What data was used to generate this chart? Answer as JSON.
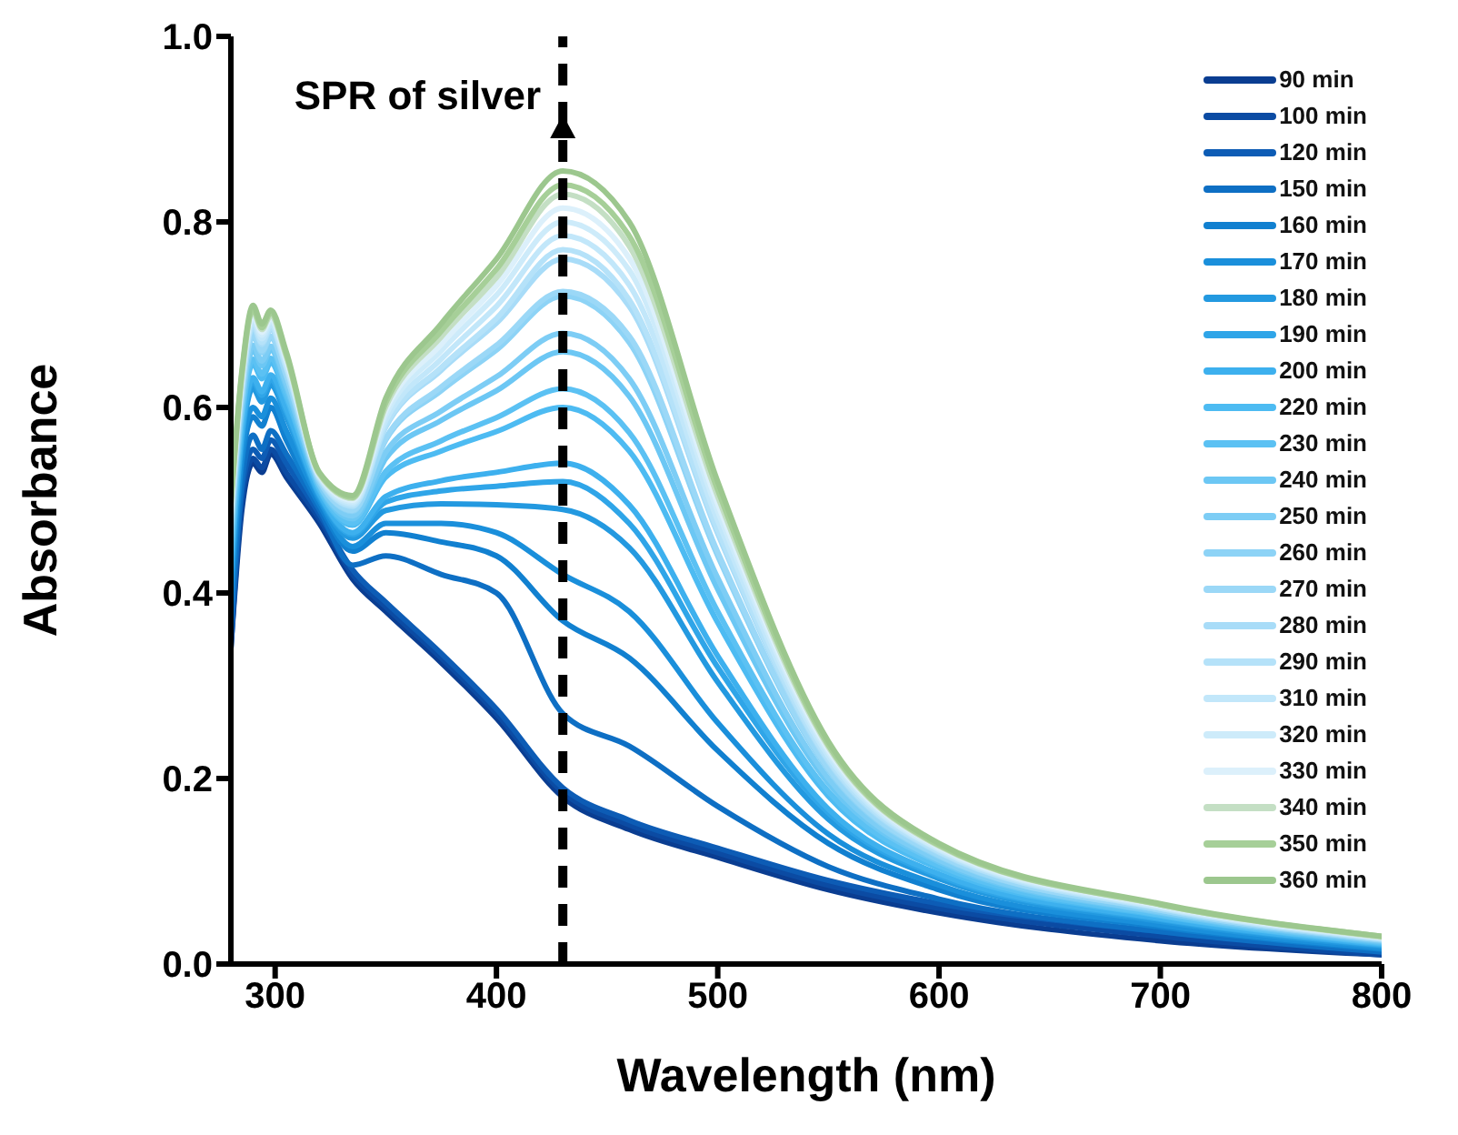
{
  "chart_data": {
    "type": "line",
    "xlabel": "Wavelength (nm)",
    "ylabel": "Absorbance",
    "x": [
      280,
      285,
      290,
      294,
      298,
      305,
      320,
      335,
      350,
      375,
      400,
      430,
      460,
      500,
      550,
      600,
      700,
      800
    ],
    "xlim": [
      280,
      800
    ],
    "xticks": [
      300,
      400,
      500,
      600,
      700,
      800
    ],
    "ylim": [
      0,
      1
    ],
    "yticks": [
      {
        "value": 0,
        "label": "0.0"
      },
      {
        "value": 0.2,
        "label": "0.2"
      },
      {
        "value": 0.4,
        "label": "0.4"
      },
      {
        "value": 0.6,
        "label": "0.6"
      },
      {
        "value": 0.8,
        "label": "0.8"
      },
      {
        "value": 1,
        "label": "1.0"
      }
    ],
    "grid": false,
    "legend": "top right",
    "marker": "none",
    "line_style": "solid",
    "ref_lines": [
      {
        "axis": "x",
        "value": 430,
        "label": "SPR of silver",
        "color": "#000000",
        "line_style": "dashed"
      }
    ],
    "series": [
      {
        "name": "90 min",
        "color": "#0a3d91",
        "values": [
          0.34,
          0.49,
          0.54,
          0.53,
          0.55,
          0.525,
          0.475,
          0.415,
          0.38,
          0.325,
          0.265,
          0.18,
          0.145,
          0.115,
          0.08,
          0.055,
          0.025,
          0.01
        ]
      },
      {
        "name": "100 min",
        "color": "#0b4ba3",
        "values": [
          0.34,
          0.5,
          0.545,
          0.535,
          0.555,
          0.53,
          0.48,
          0.42,
          0.385,
          0.33,
          0.27,
          0.185,
          0.15,
          0.12,
          0.085,
          0.06,
          0.03,
          0.01
        ]
      },
      {
        "name": "120 min",
        "color": "#0d5cb5",
        "values": [
          0.35,
          0.51,
          0.555,
          0.545,
          0.565,
          0.54,
          0.485,
          0.425,
          0.39,
          0.335,
          0.275,
          0.19,
          0.155,
          0.125,
          0.09,
          0.065,
          0.035,
          0.015
        ]
      },
      {
        "name": "150 min",
        "color": "#0e6fc4",
        "values": [
          0.36,
          0.52,
          0.57,
          0.555,
          0.575,
          0.55,
          0.49,
          0.43,
          0.44,
          0.42,
          0.4,
          0.27,
          0.235,
          0.17,
          0.105,
          0.07,
          0.035,
          0.013
        ]
      },
      {
        "name": "160 min",
        "color": "#1180d0",
        "values": [
          0.385,
          0.54,
          0.59,
          0.58,
          0.6,
          0.565,
          0.495,
          0.445,
          0.465,
          0.455,
          0.44,
          0.37,
          0.33,
          0.23,
          0.13,
          0.08,
          0.04,
          0.016
        ]
      },
      {
        "name": "170 min",
        "color": "#1a8fdb",
        "values": [
          0.4,
          0.55,
          0.6,
          0.59,
          0.61,
          0.575,
          0.5,
          0.45,
          0.475,
          0.475,
          0.465,
          0.42,
          0.38,
          0.26,
          0.14,
          0.085,
          0.042,
          0.017
        ]
      },
      {
        "name": "180 min",
        "color": "#2399e0",
        "values": [
          0.414,
          0.564,
          0.621,
          0.606,
          0.624,
          0.59,
          0.503,
          0.459,
          0.489,
          0.496,
          0.495,
          0.49,
          0.449,
          0.304,
          0.156,
          0.092,
          0.046,
          0.019
        ]
      },
      {
        "name": "190 min",
        "color": "#2fa5e8",
        "values": [
          0.42,
          0.57,
          0.628,
          0.613,
          0.63,
          0.595,
          0.505,
          0.463,
          0.498,
          0.51,
          0.515,
          0.52,
          0.475,
          0.32,
          0.163,
          0.095,
          0.048,
          0.02
        ]
      },
      {
        "name": "200 min",
        "color": "#3db0ee",
        "values": [
          0.425,
          0.574,
          0.632,
          0.617,
          0.635,
          0.599,
          0.507,
          0.465,
          0.504,
          0.521,
          0.53,
          0.54,
          0.495,
          0.332,
          0.167,
          0.097,
          0.049,
          0.021
        ]
      },
      {
        "name": "220 min",
        "color": "#4dbbf2",
        "values": [
          0.439,
          0.587,
          0.647,
          0.631,
          0.648,
          0.611,
          0.511,
          0.473,
          0.525,
          0.553,
          0.574,
          0.6,
          0.553,
          0.368,
          0.181,
          0.103,
          0.052,
          0.022
        ]
      },
      {
        "name": "230 min",
        "color": "#5bc1f3",
        "values": [
          0.444,
          0.591,
          0.652,
          0.636,
          0.653,
          0.615,
          0.513,
          0.475,
          0.531,
          0.564,
          0.589,
          0.62,
          0.573,
          0.38,
          0.186,
          0.106,
          0.053,
          0.023
        ]
      },
      {
        "name": "240 min",
        "color": "#6cc7f4",
        "values": [
          0.454,
          0.599,
          0.662,
          0.645,
          0.662,
          0.622,
          0.516,
          0.48,
          0.545,
          0.586,
          0.618,
          0.66,
          0.612,
          0.404,
          0.195,
          0.11,
          0.055,
          0.024
        ]
      },
      {
        "name": "250 min",
        "color": "#7dcdf5",
        "values": [
          0.458,
          0.604,
          0.667,
          0.65,
          0.666,
          0.626,
          0.517,
          0.483,
          0.552,
          0.596,
          0.633,
          0.68,
          0.631,
          0.416,
          0.2,
          0.112,
          0.056,
          0.025
        ]
      },
      {
        "name": "260 min",
        "color": "#8dd3f6",
        "values": [
          0.468,
          0.612,
          0.677,
          0.659,
          0.675,
          0.634,
          0.52,
          0.488,
          0.565,
          0.618,
          0.662,
          0.72,
          0.67,
          0.44,
          0.209,
          0.116,
          0.058,
          0.026
        ]
      },
      {
        "name": "270 min",
        "color": "#9bd8f7",
        "values": [
          0.47,
          0.613,
          0.679,
          0.661,
          0.677,
          0.635,
          0.521,
          0.489,
          0.567,
          0.622,
          0.667,
          0.725,
          0.677,
          0.444,
          0.211,
          0.117,
          0.058,
          0.026
        ]
      },
      {
        "name": "280 min",
        "color": "#a8dcf8",
        "values": [
          0.478,
          0.62,
          0.687,
          0.668,
          0.684,
          0.642,
          0.523,
          0.493,
          0.579,
          0.64,
          0.691,
          0.76,
          0.709,
          0.464,
          0.218,
          0.12,
          0.06,
          0.027
        ]
      },
      {
        "name": "290 min",
        "color": "#b5e2f9",
        "values": [
          0.479,
          0.622,
          0.689,
          0.67,
          0.686,
          0.643,
          0.524,
          0.494,
          0.581,
          0.643,
          0.696,
          0.77,
          0.716,
          0.468,
          0.22,
          0.121,
          0.06,
          0.027
        ]
      },
      {
        "name": "310 min",
        "color": "#c2e7fa",
        "values": [
          0.483,
          0.625,
          0.693,
          0.674,
          0.689,
          0.646,
          0.525,
          0.496,
          0.586,
          0.652,
          0.709,
          0.785,
          0.732,
          0.478,
          0.224,
          0.123,
          0.061,
          0.028
        ]
      },
      {
        "name": "320 min",
        "color": "#cdebfa",
        "values": [
          0.487,
          0.629,
          0.697,
          0.678,
          0.693,
          0.65,
          0.526,
          0.498,
          0.592,
          0.661,
          0.721,
          0.8,
          0.748,
          0.488,
          0.228,
          0.124,
          0.062,
          0.028
        ]
      },
      {
        "name": "330 min",
        "color": "#dcf0fb",
        "values": [
          0.49,
          0.632,
          0.7,
          0.681,
          0.696,
          0.652,
          0.527,
          0.5,
          0.597,
          0.668,
          0.731,
          0.815,
          0.761,
          0.496,
          0.231,
          0.126,
          0.063,
          0.029
        ]
      },
      {
        "name": "340 min",
        "color": "#c4dfc4",
        "values": [
          0.494,
          0.634,
          0.703,
          0.684,
          0.699,
          0.655,
          0.528,
          0.502,
          0.601,
          0.676,
          0.74,
          0.83,
          0.774,
          0.504,
          0.234,
          0.127,
          0.064,
          0.029
        ]
      },
      {
        "name": "350 min",
        "color": "#a6cf98",
        "values": [
          0.496,
          0.637,
          0.706,
          0.686,
          0.702,
          0.657,
          0.529,
          0.503,
          0.605,
          0.682,
          0.749,
          0.84,
          0.785,
          0.511,
          0.236,
          0.128,
          0.064,
          0.03
        ]
      },
      {
        "name": "360 min",
        "color": "#9cc78e",
        "values": [
          0.5,
          0.64,
          0.71,
          0.69,
          0.705,
          0.66,
          0.53,
          0.505,
          0.61,
          0.69,
          0.76,
          0.855,
          0.8,
          0.52,
          0.24,
          0.13,
          0.065,
          0.03
        ]
      }
    ]
  }
}
